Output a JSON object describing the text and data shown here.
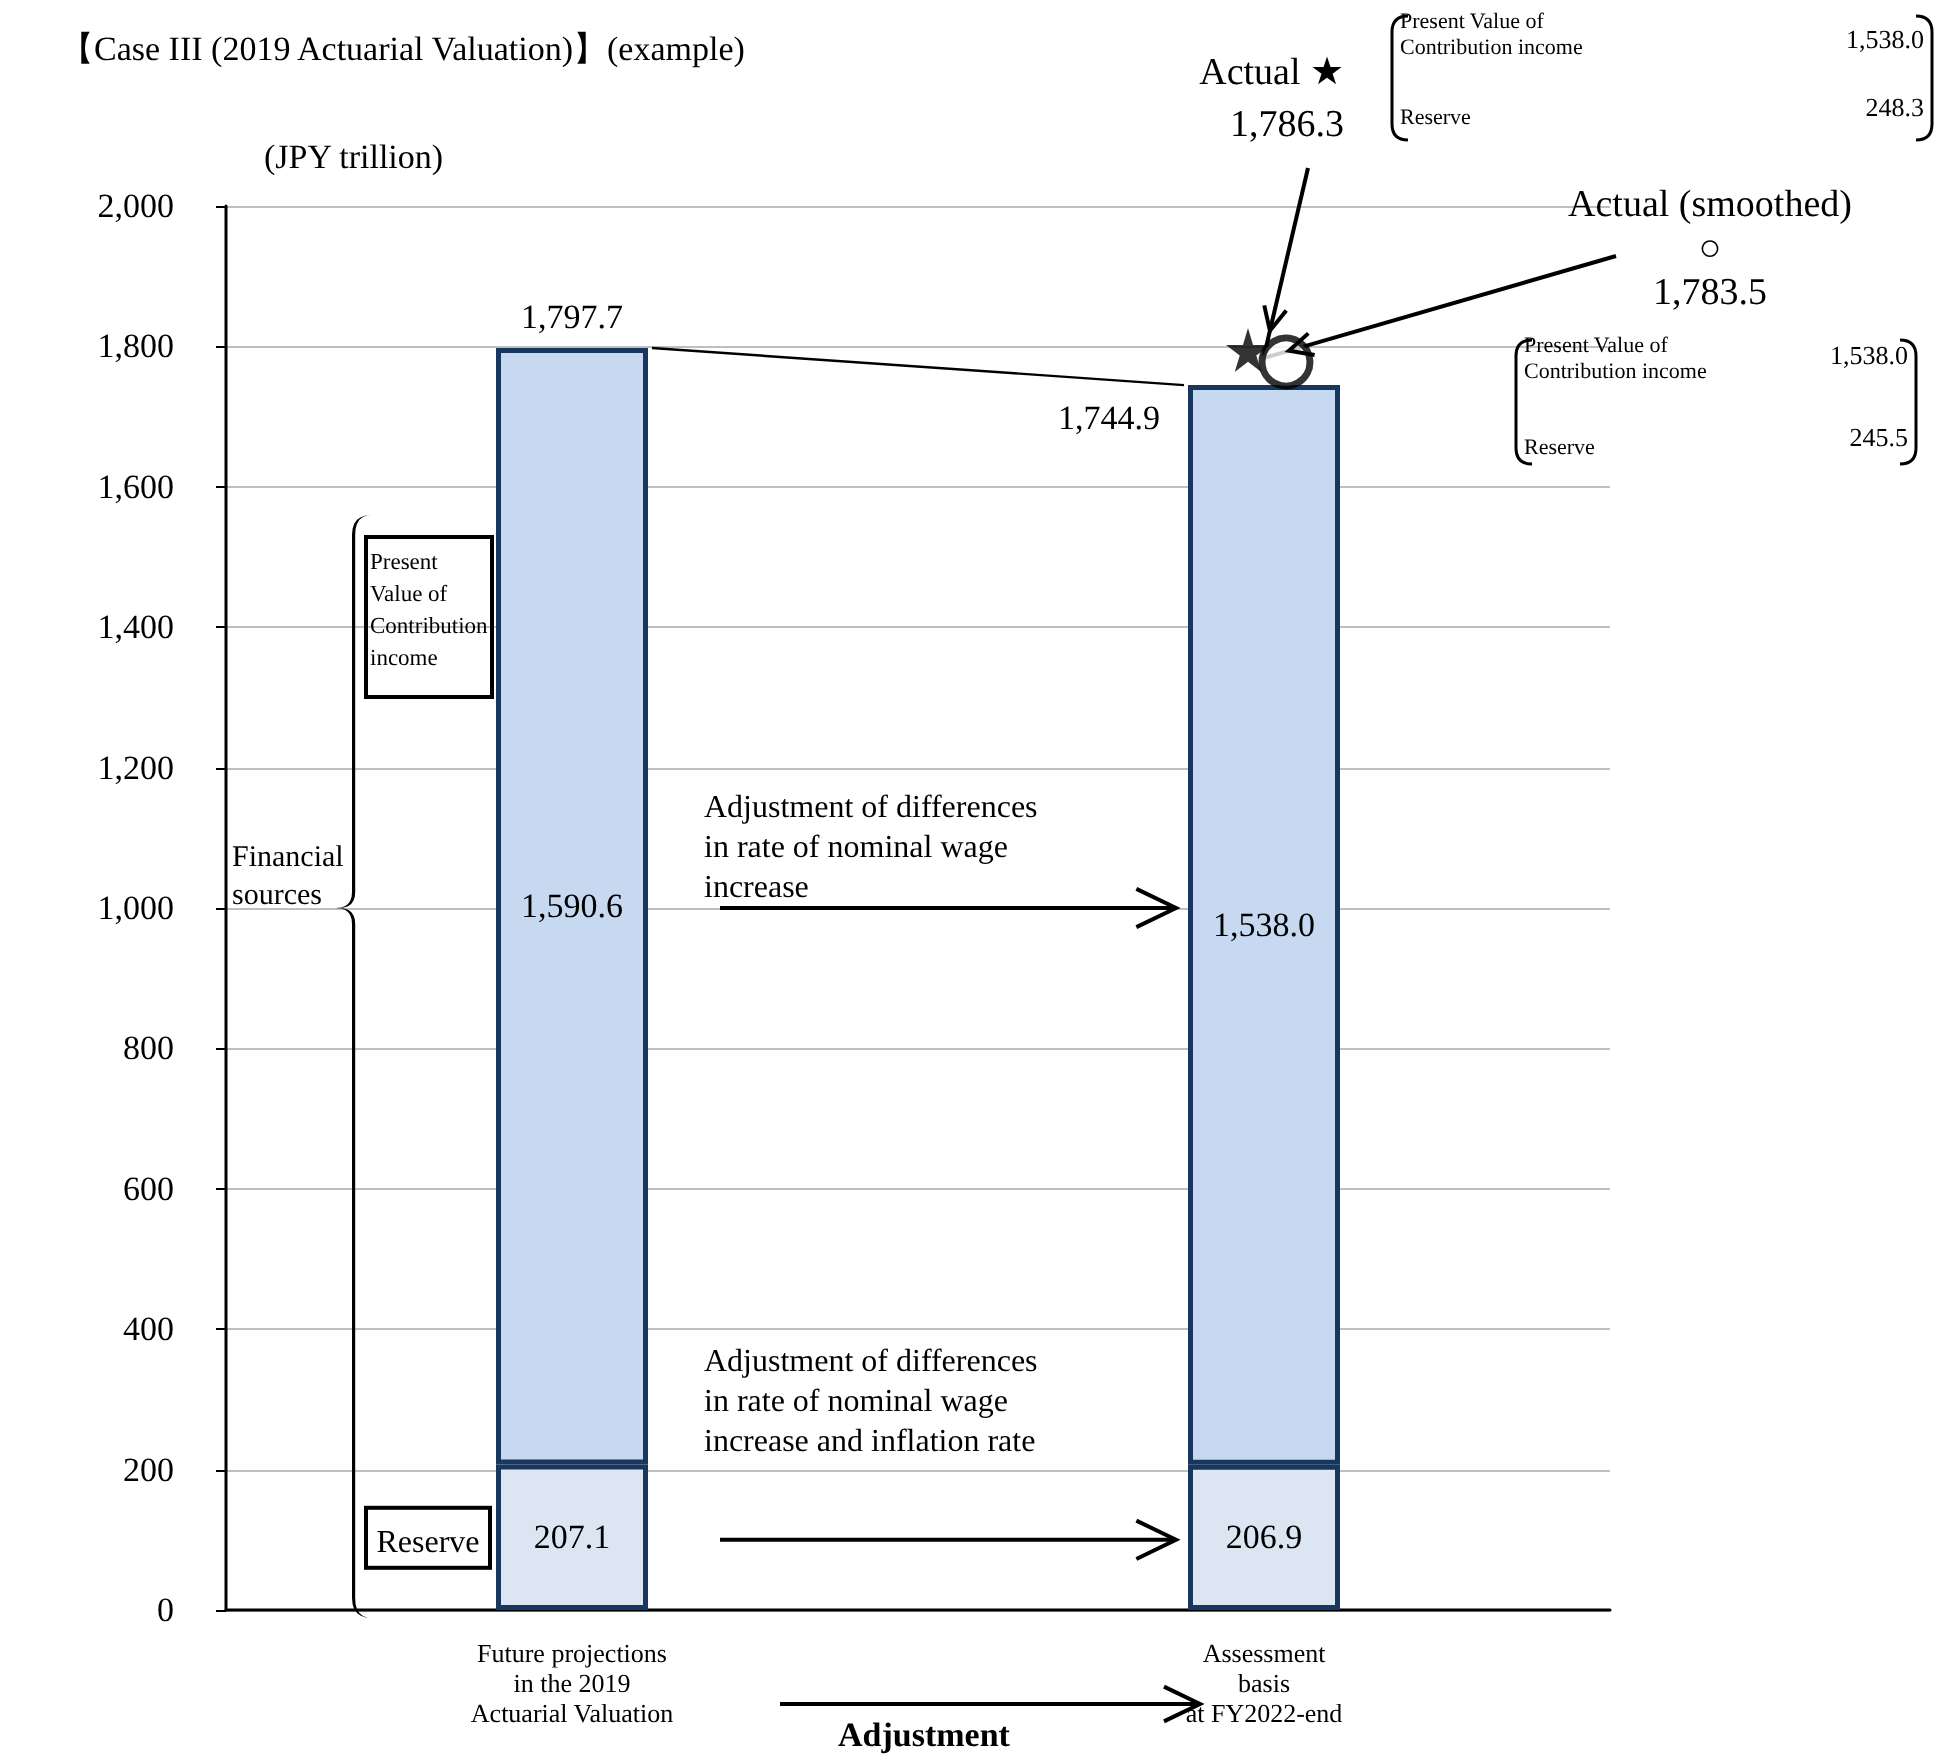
{
  "chart_data": {
    "type": "bar",
    "stacked": true,
    "title": "【Case III (2019 Actuarial Valuation)】(example)",
    "ylabel": "(JPY trillion)",
    "xlabel": "Adjustment",
    "categories": [
      "Future projections\nin the 2019\nActuarial Valuation",
      "Assessment\nbasis\nat FY2022-end"
    ],
    "ylim": [
      0,
      2000
    ],
    "yticks": [
      0,
      200,
      400,
      600,
      800,
      {
        "value": 1000,
        "label": "1,000"
      },
      {
        "value": 1200,
        "label": "1,200"
      },
      {
        "value": 1400,
        "label": "1,400"
      },
      {
        "value": 1600,
        "label": "1,600"
      },
      {
        "value": 1800,
        "label": "1,800"
      },
      {
        "value": 2000,
        "label": "2,000"
      }
    ],
    "grid": "y",
    "series": [
      {
        "name": "Reserve",
        "color": "#dce6f2",
        "values": [
          207.1,
          206.9
        ],
        "value_labels": [
          "207.1",
          "206.9"
        ]
      },
      {
        "name": "Present Value of Contribution income",
        "color": "#c6d9f1",
        "values": [
          1590.6,
          1538.0
        ],
        "value_labels": [
          "1,590.6",
          "1,538.0"
        ]
      },
      {
        "type": "scatter",
        "marker": "circle",
        "color": "#000000",
        "x": [
          "Assessment\nbasis\nat FY2022-end"
        ],
        "values": [
          1783.5
        ]
      },
      {
        "type": "scatter",
        "marker": "star",
        "color": "#000000",
        "x": [
          "Assessment\nbasis\nat FY2022-end"
        ],
        "values": [
          1786.3
        ]
      }
    ],
    "totals": [
      "1,797.7",
      "1,744.9"
    ],
    "annotations": [
      {
        "text": "Actual ★\n1,786.3",
        "x": "Assessment\nbasis\nat FY2022-end",
        "y": 1786.3
      },
      {
        "text": "Actual (smoothed)\n○\n1,783.5",
        "x": "Assessment\nbasis\nat FY2022-end",
        "y": 1783.5
      },
      "Present Value of\nContribution income",
      "1,538.0",
      "Reserve",
      "248.3",
      "Present Value of\nContribution income",
      "1,538.0",
      "Reserve",
      "245.5",
      "Adjustment of differences\nin rate of nominal wage\nincrease",
      "Adjustment of differences\nin rate of nominal wage\nincrease and inflation rate",
      "Financial\nsources"
    ]
  }
}
